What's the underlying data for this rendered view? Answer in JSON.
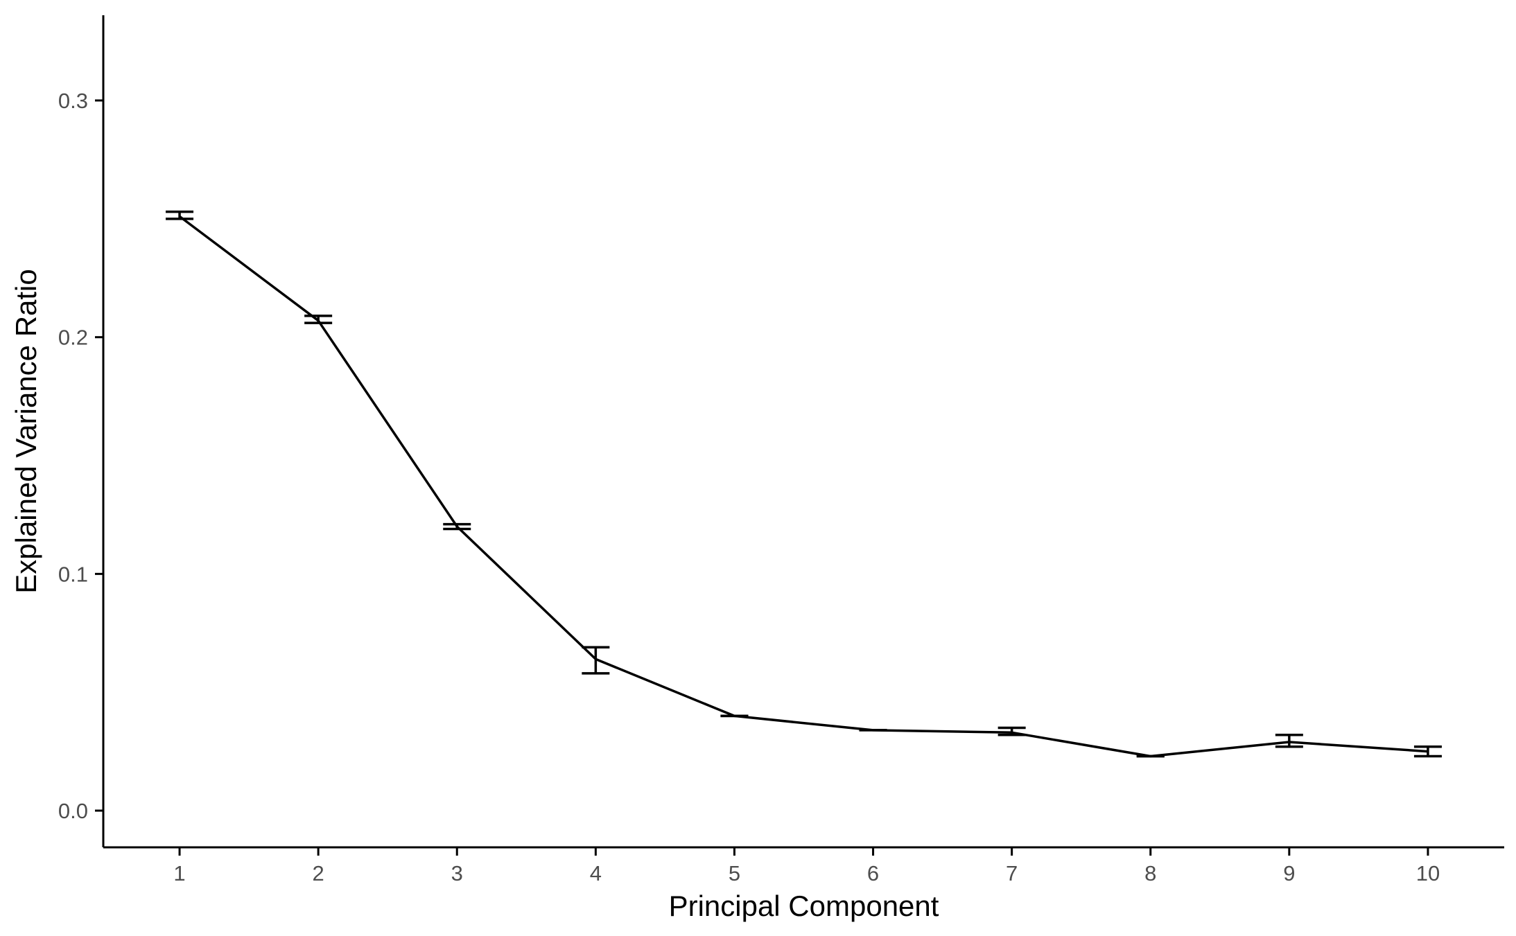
{
  "chart_data": {
    "type": "line",
    "title": "",
    "xlabel": "Principal Component",
    "ylabel": "Explained Variance Ratio",
    "x": [
      1,
      2,
      3,
      4,
      5,
      6,
      7,
      8,
      9,
      10
    ],
    "x_tick_labels": [
      "1",
      "2",
      "3",
      "4",
      "5",
      "6",
      "7",
      "8",
      "9",
      "10"
    ],
    "y_ticks": [
      0.0,
      0.1,
      0.2,
      0.3
    ],
    "y_tick_labels": [
      "0.0",
      "0.1",
      "0.2",
      "0.3"
    ],
    "xlim": [
      0.45,
      10.55
    ],
    "ylim": [
      -0.0155,
      0.336
    ],
    "grid": false,
    "legend": "none",
    "series": [
      {
        "values": [
          0.251,
          0.207,
          0.12,
          0.064,
          0.04,
          0.034,
          0.033,
          0.023,
          0.029,
          0.025
        ],
        "error_low": [
          0.25,
          0.206,
          0.119,
          0.058,
          0.04,
          0.034,
          0.032,
          0.023,
          0.027,
          0.023
        ],
        "error_high": [
          0.253,
          0.209,
          0.121,
          0.069,
          0.04,
          0.034,
          0.035,
          0.023,
          0.032,
          0.027
        ],
        "color": "#000000"
      }
    ],
    "colors": {
      "line": "#000000",
      "axis": "#000000",
      "tick_label": "#4d4d4d",
      "background": "#ffffff"
    }
  }
}
